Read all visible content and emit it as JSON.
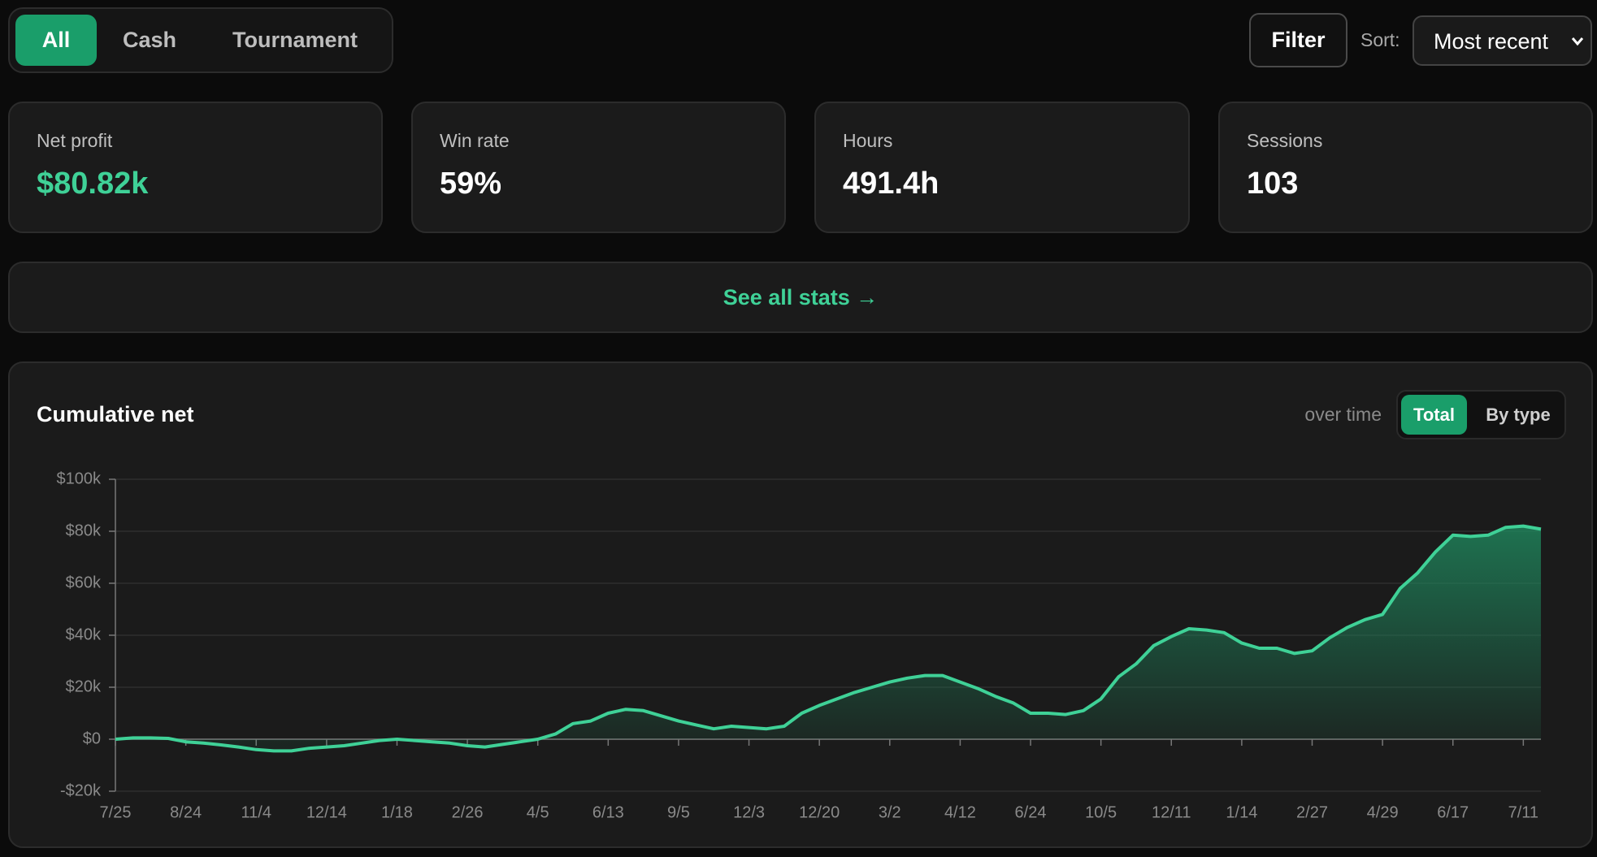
{
  "tabs": [
    "All",
    "Cash",
    "Tournament"
  ],
  "filter": "Filter",
  "sort_label": "Sort:",
  "sort_value": "Most recent",
  "stats": [
    {
      "label": "Net profit",
      "value": "$80.82k"
    },
    {
      "label": "Win rate",
      "value": "59%"
    },
    {
      "label": "Hours",
      "value": "491.4h"
    },
    {
      "label": "Sessions",
      "value": "103"
    }
  ],
  "see_all": "See all stats →",
  "chart_data": {
    "type": "area",
    "title": "Cumulative net",
    "subtitle": "over time",
    "toggle": [
      "Total",
      "By type"
    ],
    "color": "#3fd197",
    "grid": true,
    "ylim": [
      -20,
      100
    ],
    "yticks": [
      {
        "value": -20,
        "label": "-$20k"
      },
      {
        "value": 0,
        "label": "$0"
      },
      {
        "value": 20,
        "label": "$20k"
      },
      {
        "value": 40,
        "label": "$40k"
      },
      {
        "value": 60,
        "label": "$60k"
      },
      {
        "value": 80,
        "label": "$80k"
      },
      {
        "value": 100,
        "label": "$100k"
      }
    ],
    "categories": [
      "7/25",
      null,
      null,
      null,
      "8/24",
      null,
      null,
      null,
      "11/4",
      null,
      null,
      null,
      "12/14",
      null,
      null,
      null,
      "1/18",
      null,
      null,
      null,
      "2/26",
      null,
      null,
      null,
      "4/5",
      null,
      null,
      null,
      "6/13",
      null,
      null,
      null,
      "9/5",
      null,
      null,
      null,
      "12/3",
      null,
      null,
      null,
      "12/20",
      null,
      null,
      null,
      "3/2",
      null,
      null,
      null,
      "4/12",
      null,
      null,
      null,
      "6/24",
      null,
      null,
      null,
      "10/5",
      null,
      null,
      null,
      "12/11",
      null,
      null,
      null,
      "1/14",
      null,
      null,
      null,
      "2/27",
      null,
      null,
      null,
      "4/29",
      null,
      null,
      null,
      "6/17",
      null,
      null,
      null,
      "7/11",
      null
    ],
    "values": [
      0,
      0.5,
      0.5,
      0.3,
      -1,
      -1.5,
      -2.2,
      -3,
      -4,
      -4.5,
      -4.5,
      -3.5,
      -3,
      -2.5,
      -1.5,
      -0.5,
      0,
      -0.5,
      -1,
      -1.5,
      -2.5,
      -3,
      -2,
      -1,
      0,
      2,
      6,
      7,
      10,
      11.5,
      11,
      9,
      7,
      5.5,
      4,
      5,
      4.5,
      4,
      5,
      10,
      13,
      15.5,
      18,
      20,
      22,
      23.5,
      24.5,
      24.5,
      22,
      19.5,
      16.5,
      14,
      10,
      10,
      9.5,
      11,
      15.5,
      24,
      29,
      36,
      39.5,
      42.5,
      42,
      41,
      37,
      35,
      35,
      33,
      34,
      39,
      43,
      46,
      48,
      58,
      64,
      72,
      78.5,
      78,
      78.5,
      81.5,
      82,
      80.8
    ]
  }
}
